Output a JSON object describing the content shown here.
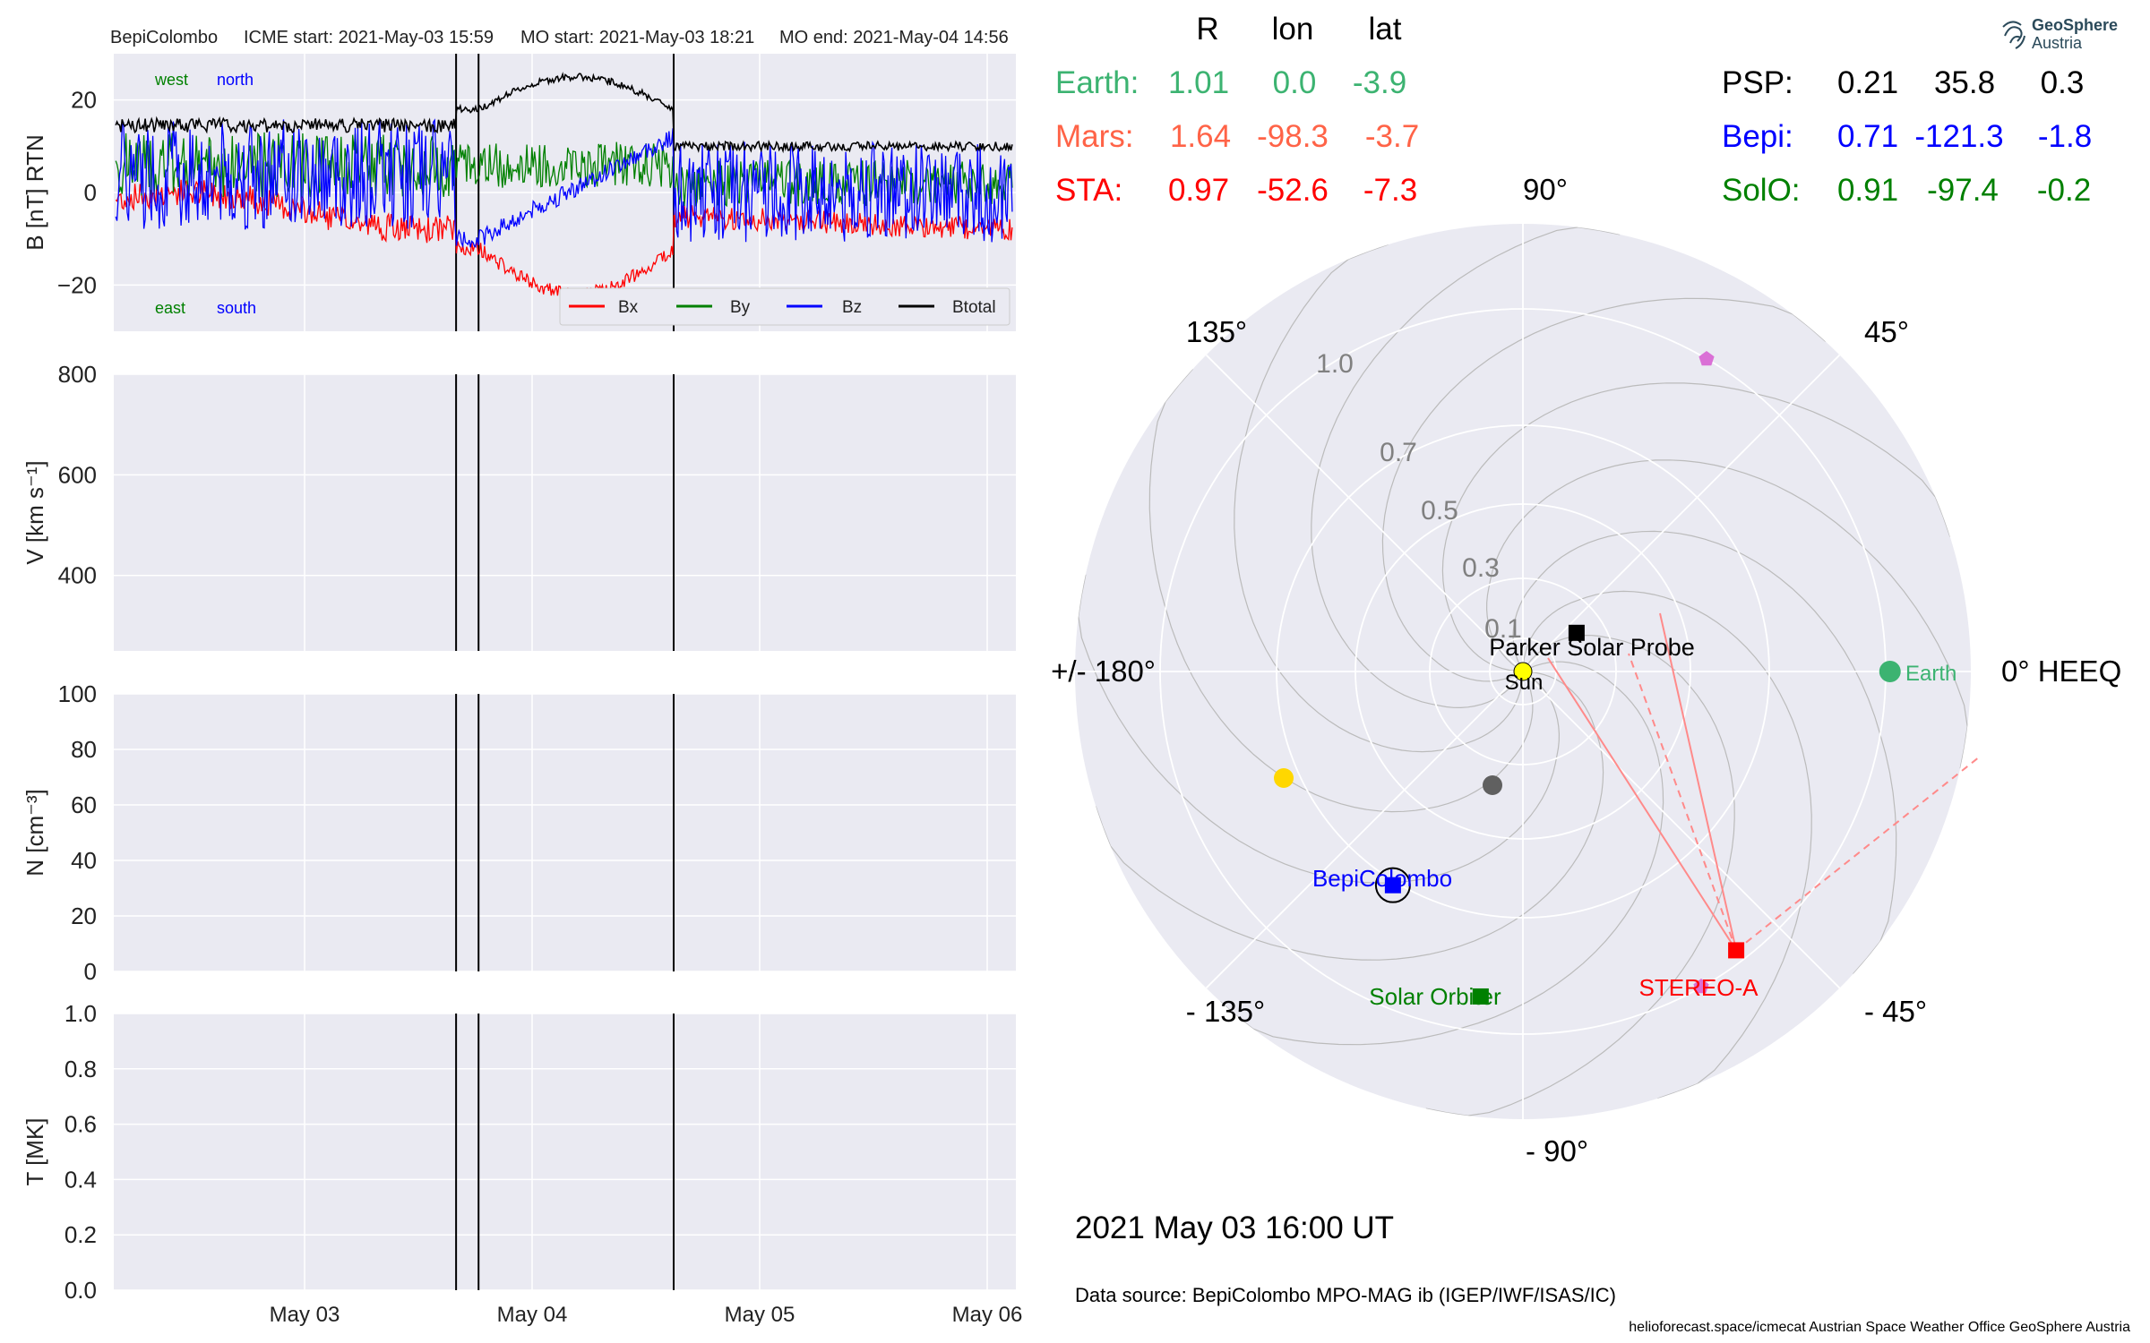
{
  "header": {
    "spacecraft": "BepiColombo",
    "icme_start": "ICME start: 2021-May-03 15:59",
    "mo_start": "MO start: 2021-May-03 18:21",
    "mo_end": "MO end: 2021-May-04 14:56"
  },
  "colors": {
    "panel_bg": "#eaeaf2",
    "grid": "#ffffff",
    "bx": "#ff0000",
    "by": "#008000",
    "bz": "#0000ff",
    "btotal": "#000000",
    "earth": "#3cb371",
    "mars": "#ff6347",
    "sta": "#ff0000",
    "psp": "#000000",
    "bepi": "#0000ff",
    "solo": "#008000"
  },
  "timeseries": {
    "x_ticks": [
      "May 03",
      "May 04",
      "May 05",
      "May 06"
    ],
    "event_lines": [
      "2021-05-03 15:59",
      "2021-05-03 18:21",
      "2021-05-04 14:56"
    ],
    "panels": [
      {
        "ylabel": "B [nT] RTN",
        "ylim": [
          -30,
          30
        ],
        "ticks": [
          "20",
          "0",
          "−20"
        ],
        "tick_values": [
          20,
          0,
          -20
        ],
        "annot": {
          "west": "west",
          "north": "north",
          "east": "east",
          "south": "south"
        },
        "legend": [
          "Bx",
          "By",
          "Bz",
          "Btotal"
        ]
      },
      {
        "ylabel": "V [km s⁻¹]",
        "ylim": [
          250,
          800
        ],
        "ticks": [
          "800",
          "600",
          "400"
        ],
        "tick_values": [
          800,
          600,
          400
        ]
      },
      {
        "ylabel": "N [cm⁻³]",
        "ylim": [
          0,
          100
        ],
        "ticks": [
          "100",
          "80",
          "60",
          "40",
          "20",
          "0"
        ],
        "tick_values": [
          100,
          80,
          60,
          40,
          20,
          0
        ]
      },
      {
        "ylabel": "T [MK]",
        "ylim": [
          0,
          1
        ],
        "ticks": [
          "1.0",
          "0.8",
          "0.6",
          "0.4",
          "0.2",
          "0.0"
        ],
        "tick_values": [
          1.0,
          0.8,
          0.6,
          0.4,
          0.2,
          0.0
        ]
      }
    ]
  },
  "table": {
    "headers": [
      "R",
      "lon",
      "lat"
    ],
    "rows_left": [
      {
        "name": "Earth:",
        "r": "1.01",
        "lon": "0.0",
        "lat": "-3.9"
      },
      {
        "name": "Mars:",
        "r": "1.64",
        "lon": "-98.3",
        "lat": "-3.7"
      },
      {
        "name": "STA:",
        "r": "0.97",
        "lon": "-52.6",
        "lat": "-7.3"
      }
    ],
    "rows_right": [
      {
        "name": "PSP:",
        "r": "0.21",
        "lon": "35.8",
        "lat": "0.3"
      },
      {
        "name": "Bepi:",
        "r": "0.71",
        "lon": "-121.3",
        "lat": "-1.8"
      },
      {
        "name": "SolO:",
        "r": "0.91",
        "lon": "-97.4",
        "lat": "-0.2"
      }
    ]
  },
  "polar": {
    "angle_labels": [
      "90°",
      "45°",
      "0° HEEQ",
      "- 45°",
      "- 90°",
      "- 135°",
      "+/- 180°",
      "135°"
    ],
    "r_labels": [
      "0.1",
      "0.3",
      "0.5",
      "0.7",
      "1.0"
    ],
    "bodies": [
      {
        "label": "Sun",
        "lon": 0,
        "r": 0
      },
      {
        "label": "Earth",
        "lon": 0.0,
        "r": 1.01
      },
      {
        "label": "Parker Solar Probe",
        "lon": 35.8,
        "r": 0.21
      },
      {
        "label": "BepiColombo",
        "lon": -121.3,
        "r": 0.71
      },
      {
        "label": "Solar Orbiter",
        "lon": -97.4,
        "r": 0.91
      },
      {
        "label": "STEREO-A",
        "lon": -52.6,
        "r": 0.97
      }
    ],
    "date": "2021 May 03  16:00 UT"
  },
  "footer": {
    "data_source": "Data source: BepiColombo MPO-MAG ib (IGEP/IWF/ISAS/IC)",
    "credits": "helioforecast.space/icmecat   Austrian Space Weather Office   GeoSphere Austria"
  },
  "logo": {
    "line1": "GeoSphere",
    "line2": "Austria"
  }
}
